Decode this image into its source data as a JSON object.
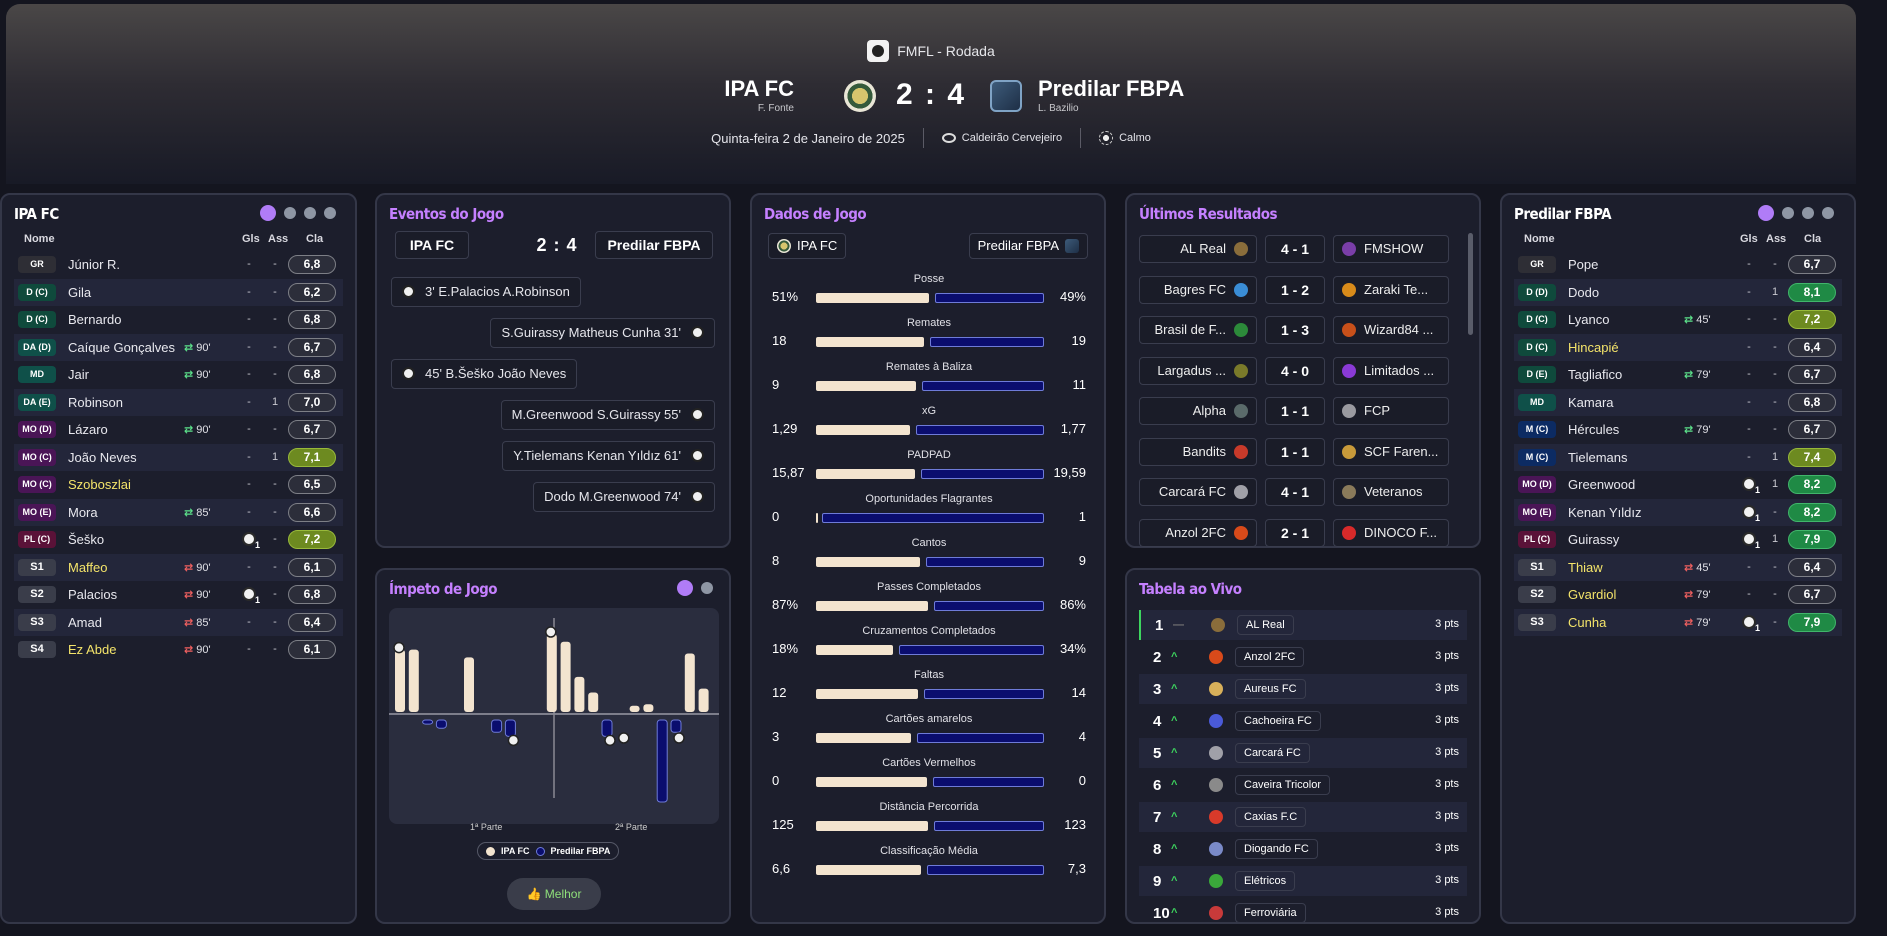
{
  "header": {
    "competition": "FMFL - Rodada",
    "home": {
      "name": "IPA FC",
      "manager": "F. Fonte"
    },
    "away": {
      "name": "Predilar FBPA",
      "manager": "L. Bazilio"
    },
    "score": "2 : 4",
    "date": "Quinta-feira 2 de Janeiro de 2025",
    "stadium": "Caldeirão Cervejeiro",
    "weather": "Calmo"
  },
  "roster_columns": {
    "name": "Nome",
    "goals": "Gls",
    "assists": "Ass",
    "rating": "Cla"
  },
  "home_panel": {
    "title": "IPA FC",
    "players": [
      {
        "pos": "GR",
        "cls": "gk",
        "name": "Júnior R.",
        "sub": "",
        "goal": false,
        "gls": "-",
        "ass": "-",
        "rating": "6,8",
        "rc": ""
      },
      {
        "pos": "D (C)",
        "cls": "def",
        "name": "Gila",
        "sub": "",
        "goal": false,
        "gls": "-",
        "ass": "-",
        "rating": "6,2",
        "rc": ""
      },
      {
        "pos": "D (C)",
        "cls": "def",
        "name": "Bernardo",
        "sub": "",
        "goal": false,
        "gls": "-",
        "ass": "-",
        "rating": "6,8",
        "rc": ""
      },
      {
        "pos": "DA (D)",
        "cls": "dmid",
        "name": "Caíque Gonçalves",
        "sub": "in",
        "subTime": "90'",
        "goal": false,
        "gls": "-",
        "ass": "-",
        "rating": "6,7",
        "rc": ""
      },
      {
        "pos": "MD",
        "cls": "dmid",
        "name": "Jair",
        "sub": "in",
        "subTime": "90'",
        "goal": false,
        "gls": "-",
        "ass": "-",
        "rating": "6,8",
        "rc": ""
      },
      {
        "pos": "DA (E)",
        "cls": "dmid",
        "name": "Robinson",
        "sub": "",
        "goal": false,
        "gls": "-",
        "ass": "1",
        "rating": "7,0",
        "rc": ""
      },
      {
        "pos": "MO (D)",
        "cls": "amid",
        "name": "Lázaro",
        "sub": "in",
        "subTime": "90'",
        "goal": false,
        "gls": "-",
        "ass": "-",
        "rating": "6,7",
        "rc": ""
      },
      {
        "pos": "MO (C)",
        "cls": "amid",
        "name": "João Neves",
        "sub": "",
        "goal": false,
        "gls": "-",
        "ass": "1",
        "rating": "7,1",
        "rc": "lime"
      },
      {
        "pos": "MO (C)",
        "cls": "amid",
        "name": "Szoboszlai",
        "yellow": true,
        "sub": "",
        "goal": false,
        "gls": "-",
        "ass": "-",
        "rating": "6,5",
        "rc": ""
      },
      {
        "pos": "MO (E)",
        "cls": "amid",
        "name": "Mora",
        "sub": "in",
        "subTime": "85'",
        "goal": false,
        "gls": "-",
        "ass": "-",
        "rating": "6,6",
        "rc": ""
      },
      {
        "pos": "PL (C)",
        "cls": "fwd",
        "name": "Šeško",
        "sub": "",
        "goal": true,
        "gls": "",
        "ass": "-",
        "rating": "7,2",
        "rc": "lime"
      },
      {
        "pos": "S1",
        "cls": "sub",
        "name": "Maffeo",
        "yellow": true,
        "sub": "out",
        "subTime": "90'",
        "goal": false,
        "gls": "-",
        "ass": "-",
        "rating": "6,1",
        "rc": ""
      },
      {
        "pos": "S2",
        "cls": "sub",
        "name": "Palacios",
        "sub": "out",
        "subTime": "90'",
        "goal": true,
        "gls": "",
        "ass": "-",
        "rating": "6,8",
        "rc": ""
      },
      {
        "pos": "S3",
        "cls": "sub",
        "name": "Amad",
        "sub": "out",
        "subTime": "85'",
        "goal": false,
        "gls": "-",
        "ass": "-",
        "rating": "6,4",
        "rc": ""
      },
      {
        "pos": "S4",
        "cls": "sub",
        "name": "Ez Abde",
        "yellow": true,
        "sub": "out",
        "subTime": "90'",
        "goal": false,
        "gls": "-",
        "ass": "-",
        "rating": "6,1",
        "rc": ""
      }
    ]
  },
  "away_panel": {
    "title": "Predilar FBPA",
    "players": [
      {
        "pos": "GR",
        "cls": "gk",
        "name": "Pope",
        "sub": "",
        "goal": false,
        "gls": "-",
        "ass": "-",
        "rating": "6,7",
        "rc": ""
      },
      {
        "pos": "D (D)",
        "cls": "def",
        "name": "Dodo",
        "sub": "",
        "goal": false,
        "gls": "-",
        "ass": "1",
        "rating": "8,1",
        "rc": "green"
      },
      {
        "pos": "D (C)",
        "cls": "def",
        "name": "Lyanco",
        "sub": "in",
        "subTime": "45'",
        "goal": false,
        "gls": "-",
        "ass": "-",
        "rating": "7,2",
        "rc": "lime"
      },
      {
        "pos": "D (C)",
        "cls": "def",
        "name": "Hincapié",
        "yellow": true,
        "sub": "",
        "goal": false,
        "gls": "-",
        "ass": "-",
        "rating": "6,4",
        "rc": ""
      },
      {
        "pos": "D (E)",
        "cls": "def",
        "name": "Tagliafico",
        "sub": "in",
        "subTime": "79'",
        "goal": false,
        "gls": "-",
        "ass": "-",
        "rating": "6,7",
        "rc": ""
      },
      {
        "pos": "MD",
        "cls": "dmid",
        "name": "Kamara",
        "sub": "",
        "goal": false,
        "gls": "-",
        "ass": "-",
        "rating": "6,8",
        "rc": ""
      },
      {
        "pos": "M (C)",
        "cls": "mid",
        "name": "Hércules",
        "sub": "in",
        "subTime": "79'",
        "goal": false,
        "gls": "-",
        "ass": "-",
        "rating": "6,7",
        "rc": ""
      },
      {
        "pos": "M (C)",
        "cls": "mid",
        "name": "Tielemans",
        "sub": "",
        "goal": false,
        "gls": "-",
        "ass": "1",
        "rating": "7,4",
        "rc": "lime"
      },
      {
        "pos": "MO (D)",
        "cls": "amid",
        "name": "Greenwood",
        "sub": "",
        "goal": true,
        "gls": "",
        "ass": "1",
        "rating": "8,2",
        "rc": "green"
      },
      {
        "pos": "MO (E)",
        "cls": "amid",
        "name": "Kenan Yıldız",
        "sub": "",
        "goal": true,
        "gls": "",
        "ass": "-",
        "rating": "8,2",
        "rc": "green"
      },
      {
        "pos": "PL (C)",
        "cls": "fwd",
        "name": "Guirassy",
        "sub": "",
        "goal": true,
        "gls": "",
        "ass": "1",
        "rating": "7,9",
        "rc": "green"
      },
      {
        "pos": "S1",
        "cls": "sub",
        "name": "Thiaw",
        "yellow": true,
        "sub": "out",
        "subTime": "45'",
        "goal": false,
        "gls": "-",
        "ass": "-",
        "rating": "6,4",
        "rc": ""
      },
      {
        "pos": "S2",
        "cls": "sub",
        "name": "Gvardiol",
        "yellow": true,
        "sub": "out",
        "subTime": "79'",
        "goal": false,
        "gls": "-",
        "ass": "-",
        "rating": "6,7",
        "rc": ""
      },
      {
        "pos": "S3",
        "cls": "sub",
        "name": "Cunha",
        "yellow": true,
        "sub": "out",
        "subTime": "79'",
        "goal": true,
        "gls": "",
        "ass": "-",
        "rating": "7,9",
        "rc": "green"
      }
    ]
  },
  "events_panel": {
    "title": "Eventos do Jogo",
    "home": "IPA FC",
    "away": "Predilar FBPA",
    "score": "2 : 4",
    "events": [
      {
        "side": "home",
        "text": "3'  E.Palacios  A.Robinson"
      },
      {
        "side": "away",
        "text": "S.Guirassy  Matheus Cunha  31'"
      },
      {
        "side": "home",
        "text": "45'  B.Šeško  João Neves"
      },
      {
        "side": "away",
        "text": "M.Greenwood  S.Guirassy  55'"
      },
      {
        "side": "away",
        "text": "Y.Tielemans  Kenan Yıldız  61'"
      },
      {
        "side": "away",
        "text": "Dodo  M.Greenwood  74'"
      }
    ]
  },
  "momentum_panel": {
    "title": "Ímpeto de Jogo",
    "first_half": "1ª Parte",
    "second_half": "2ª Parte",
    "legend_home": "IPA FC",
    "legend_away": "Predilar FBPA",
    "best_button": "Melhor",
    "home_color": "#f3e4cf",
    "away_color": "#0a0d6e",
    "home_bars": [
      0.8,
      0.8,
      0,
      0,
      0,
      0.7,
      0,
      0,
      0,
      0,
      0,
      1.0,
      0.9,
      0.45,
      0.25,
      0,
      0,
      0.08,
      0.1,
      0,
      0,
      0.75,
      0.3
    ],
    "away_bars": [
      0,
      0,
      0.05,
      0.1,
      0,
      0,
      0,
      0.15,
      0.2,
      0,
      0,
      0,
      0,
      0,
      0,
      0.2,
      0,
      0,
      0,
      1.0,
      0.15,
      0,
      0
    ],
    "home_goal_bars": [
      0,
      11
    ],
    "away_goal_bars": [
      8,
      15,
      16,
      20
    ]
  },
  "stats_panel": {
    "title": "Dados de Jogo",
    "home": "IPA FC",
    "away": "Predilar FBPA",
    "stats": [
      {
        "label": "Posse",
        "home": "51%",
        "away": "49%",
        "hv": 51,
        "av": 49
      },
      {
        "label": "Remates",
        "home": "18",
        "away": "19",
        "hv": 18,
        "av": 19
      },
      {
        "label": "Remates à Baliza",
        "home": "9",
        "away": "11",
        "hv": 9,
        "av": 11
      },
      {
        "label": "xG",
        "home": "1,29",
        "away": "1,77",
        "hv": 1.29,
        "av": 1.77
      },
      {
        "label": "PADPAD",
        "home": "15,87",
        "away": "19,59",
        "hv": 15.87,
        "av": 19.59
      },
      {
        "label": "Oportunidades Flagrantes",
        "home": "0",
        "away": "1",
        "hv": 0,
        "av": 1
      },
      {
        "label": "Cantos",
        "home": "8",
        "away": "9",
        "hv": 8,
        "av": 9
      },
      {
        "label": "Passes Completados",
        "home": "87%",
        "away": "86%",
        "hv": 87,
        "av": 86
      },
      {
        "label": "Cruzamentos Completados",
        "home": "18%",
        "away": "34%",
        "hv": 18,
        "av": 34
      },
      {
        "label": "Faltas",
        "home": "12",
        "away": "14",
        "hv": 12,
        "av": 14
      },
      {
        "label": "Cartões amarelos",
        "home": "3",
        "away": "4",
        "hv": 3,
        "av": 4
      },
      {
        "label": "Cartões Vermelhos",
        "home": "0",
        "away": "0",
        "hv": 0,
        "av": 0
      },
      {
        "label": "Distância Percorrida",
        "home": "125",
        "away": "123",
        "hv": 125,
        "av": 123
      },
      {
        "label": "Classificação Média",
        "home": "6,6",
        "away": "7,3",
        "hv": 6.6,
        "av": 7.3
      }
    ]
  },
  "results_panel": {
    "title": "Últimos Resultados",
    "results": [
      {
        "home": "AL Real",
        "score": "4 - 1",
        "away": "FMSHOW",
        "hc": "#8a6d3b",
        "ac": "#7a3ea8"
      },
      {
        "home": "Bagres FC",
        "score": "1 - 2",
        "away": "Zaraki Te...",
        "hc": "#3a8dd6",
        "ac": "#d98b1a"
      },
      {
        "home": "Brasil de F...",
        "score": "1 - 3",
        "away": "Wizard84 ...",
        "hc": "#2c8a3a",
        "ac": "#c8501a"
      },
      {
        "home": "Largadus ...",
        "score": "4 - 0",
        "away": "Limitados ...",
        "hc": "#7a7a2a",
        "ac": "#8a3ad6"
      },
      {
        "home": "Alpha",
        "score": "1 - 1",
        "away": "FCP",
        "hc": "#5a6a6a",
        "ac": "#9a9aa0"
      },
      {
        "home": "Bandits",
        "score": "1 - 1",
        "away": "SCF Faren...",
        "hc": "#c83a2a",
        "ac": "#c89a3a"
      },
      {
        "home": "Carcará FC",
        "score": "4 - 1",
        "away": "Veteranos",
        "hc": "#a0a0a8",
        "ac": "#8a7a5a"
      },
      {
        "home": "Anzol 2FC",
        "score": "2 - 1",
        "away": "DINOCO F...",
        "hc": "#d84a1a",
        "ac": "#d82a2a"
      }
    ]
  },
  "table_panel": {
    "title": "Tabela ao Vivo",
    "rows": [
      {
        "pos": "1",
        "move": "—",
        "team": "AL Real",
        "pts": "3 pts",
        "c": "#8a6d3b"
      },
      {
        "pos": "2",
        "move": "^",
        "team": "Anzol 2FC",
        "pts": "3 pts",
        "c": "#d84a1a"
      },
      {
        "pos": "3",
        "move": "^",
        "team": "Aureus FC",
        "pts": "3 pts",
        "c": "#d8b05a"
      },
      {
        "pos": "4",
        "move": "^",
        "team": "Cachoeira FC",
        "pts": "3 pts",
        "c": "#4a5ad8"
      },
      {
        "pos": "5",
        "move": "^",
        "team": "Carcará FC",
        "pts": "3 pts",
        "c": "#a0a0a8"
      },
      {
        "pos": "6",
        "move": "^",
        "team": "Caveira Tricolor",
        "pts": "3 pts",
        "c": "#8a8a8a"
      },
      {
        "pos": "7",
        "move": "^",
        "team": "Caxias F.C",
        "pts": "3 pts",
        "c": "#d83a2a"
      },
      {
        "pos": "8",
        "move": "^",
        "team": "Diogando FC",
        "pts": "3 pts",
        "c": "#7a8ac8"
      },
      {
        "pos": "9",
        "move": "^",
        "team": "Elétricos",
        "pts": "3 pts",
        "c": "#3aa83a"
      },
      {
        "pos": "10",
        "move": "^",
        "team": "Ferroviária",
        "pts": "3 pts",
        "c": "#c83a3a"
      }
    ]
  }
}
